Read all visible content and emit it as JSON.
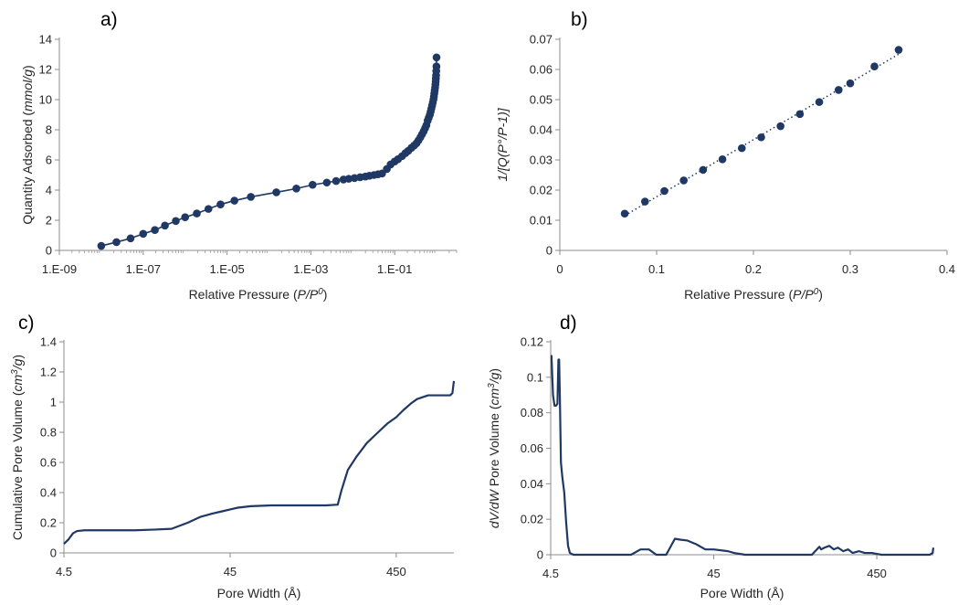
{
  "colors": {
    "series": "#1F3864",
    "axis": "#8C8C8C",
    "text": "#262626"
  },
  "chart_data": [
    {
      "panel": "a)",
      "type": "scatter",
      "xscale": "log",
      "xlabel": "Relative Pressure (P/P0)",
      "ylabel": "Quantity Adsorbed (mmol/g)",
      "xlim": [
        1e-09,
        3
      ],
      "ylim": [
        0,
        14
      ],
      "xticks": [
        "1.E-09",
        "1.E-07",
        "1.E-05",
        "1.E-03",
        "1.E-01"
      ],
      "yticks": [
        "0",
        "2",
        "4",
        "6",
        "8",
        "10",
        "12",
        "14"
      ],
      "marker_line": true,
      "x": [
        1e-08,
        2.3e-08,
        5e-08,
        1e-07,
        1.9e-07,
        3.3e-07,
        6e-07,
        1e-06,
        1.9e-06,
        3.6e-06,
        7e-06,
        1.5e-05,
        3.7e-05,
        0.00015,
        0.00045,
        0.0011,
        0.0024,
        0.004,
        0.006,
        0.008,
        0.011,
        0.015,
        0.02,
        0.025,
        0.032,
        0.04,
        0.05,
        0.065,
        0.08,
        0.1,
        0.12,
        0.15,
        0.18,
        0.21,
        0.25,
        0.29,
        0.33,
        0.37,
        0.41,
        0.45,
        0.49,
        0.53,
        0.57,
        0.61,
        0.65,
        0.69,
        0.72,
        0.75,
        0.78,
        0.81,
        0.84,
        0.86,
        0.88,
        0.9,
        0.92,
        0.935,
        0.95,
        0.96,
        0.97,
        0.98,
        0.99,
        0.995
      ],
      "y": [
        0.3,
        0.55,
        0.8,
        1.1,
        1.35,
        1.65,
        1.95,
        2.2,
        2.45,
        2.75,
        3.05,
        3.3,
        3.55,
        3.85,
        4.1,
        4.35,
        4.5,
        4.6,
        4.7,
        4.75,
        4.8,
        4.85,
        4.9,
        4.95,
        5.0,
        5.05,
        5.1,
        5.4,
        5.7,
        5.9,
        6.05,
        6.25,
        6.45,
        6.6,
        6.8,
        6.95,
        7.1,
        7.3,
        7.5,
        7.7,
        7.9,
        8.1,
        8.3,
        8.6,
        8.8,
        9.0,
        9.2,
        9.4,
        9.6,
        9.8,
        10.0,
        10.2,
        10.4,
        10.6,
        10.8,
        11.0,
        11.2,
        11.4,
        11.6,
        11.9,
        12.2,
        12.8
      ]
    },
    {
      "panel": "b)",
      "type": "scatter",
      "xlabel": "Relative Pressure (P/P0)",
      "ylabel": "1/[Q(P°/P-1)]",
      "xlim": [
        0,
        0.4
      ],
      "ylim": [
        0,
        0.07
      ],
      "xticks": [
        "0",
        "0.1",
        "0.2",
        "0.3",
        "0.4"
      ],
      "yticks": [
        "0",
        "0.01",
        "0.02",
        "0.03",
        "0.04",
        "0.05",
        "0.06",
        "0.07"
      ],
      "trendline": "linear-dotted",
      "x": [
        0.067,
        0.088,
        0.108,
        0.128,
        0.148,
        0.168,
        0.188,
        0.208,
        0.228,
        0.248,
        0.268,
        0.288,
        0.3,
        0.325,
        0.35
      ],
      "y": [
        0.0122,
        0.0162,
        0.0197,
        0.0232,
        0.0267,
        0.0302,
        0.0339,
        0.0375,
        0.0412,
        0.0452,
        0.0492,
        0.0532,
        0.0554,
        0.061,
        0.0665
      ]
    },
    {
      "panel": "c)",
      "type": "line",
      "xscale": "log",
      "xlabel": "Pore Width (Å)",
      "ylabel": "Cumulative Pore Volume (cm3/g)",
      "xlim": [
        4.5,
        1000
      ],
      "ylim": [
        0,
        1.4
      ],
      "xticks": [
        "4.5",
        "45",
        "450"
      ],
      "yticks": [
        "0",
        "0.2",
        "0.4",
        "0.6",
        "0.8",
        "1",
        "1.2",
        "1.4"
      ],
      "x": [
        4.5,
        4.8,
        5.1,
        5.4,
        6,
        8,
        12,
        16,
        20,
        25,
        30,
        35,
        40,
        50,
        60,
        80,
        120,
        170,
        200,
        210,
        230,
        260,
        300,
        350,
        400,
        450,
        500,
        550,
        600,
        700,
        850,
        950,
        980,
        1000
      ],
      "y": [
        0.06,
        0.09,
        0.13,
        0.145,
        0.15,
        0.15,
        0.15,
        0.155,
        0.16,
        0.2,
        0.24,
        0.26,
        0.275,
        0.3,
        0.31,
        0.315,
        0.315,
        0.315,
        0.32,
        0.41,
        0.55,
        0.64,
        0.73,
        0.8,
        0.86,
        0.9,
        0.95,
        0.99,
        1.02,
        1.045,
        1.045,
        1.045,
        1.06,
        1.14
      ]
    },
    {
      "panel": "d)",
      "type": "line",
      "xscale": "log",
      "xlabel": "Pore Width (Å)",
      "ylabel": "dV/dW Pore Volume (cm3/g)",
      "xlim": [
        4.5,
        1000
      ],
      "ylim": [
        0,
        0.12
      ],
      "xticks": [
        "4.5",
        "45",
        "450"
      ],
      "yticks": [
        "0",
        "0.02",
        "0.04",
        "0.06",
        "0.08",
        "0.1",
        "0.12"
      ],
      "x": [
        4.5,
        4.55,
        4.65,
        4.75,
        4.85,
        4.95,
        5.02,
        5.07,
        5.12,
        5.2,
        5.3,
        5.45,
        5.6,
        5.75,
        5.9,
        6.2,
        7,
        10,
        14,
        16,
        18,
        20,
        23,
        26,
        28,
        31,
        35,
        40,
        45,
        55,
        60,
        70,
        100,
        180,
        200,
        205,
        215,
        230,
        245,
        260,
        280,
        300,
        320,
        350,
        380,
        420,
        480,
        600,
        800,
        950,
        990,
        1000
      ],
      "y": [
        0.112,
        0.112,
        0.09,
        0.084,
        0.084,
        0.085,
        0.11,
        0.11,
        0.09,
        0.052,
        0.044,
        0.035,
        0.018,
        0.005,
        0.001,
        0,
        0,
        0,
        0,
        0.003,
        0.003,
        0,
        0,
        0.009,
        0.0085,
        0.008,
        0.006,
        0.003,
        0.003,
        0.002,
        0.001,
        0,
        0,
        0,
        0.0045,
        0.003,
        0.004,
        0.005,
        0.003,
        0.004,
        0.002,
        0.003,
        0.001,
        0.002,
        0.001,
        0.001,
        0,
        0,
        0,
        0,
        0.001,
        0.004
      ]
    }
  ]
}
